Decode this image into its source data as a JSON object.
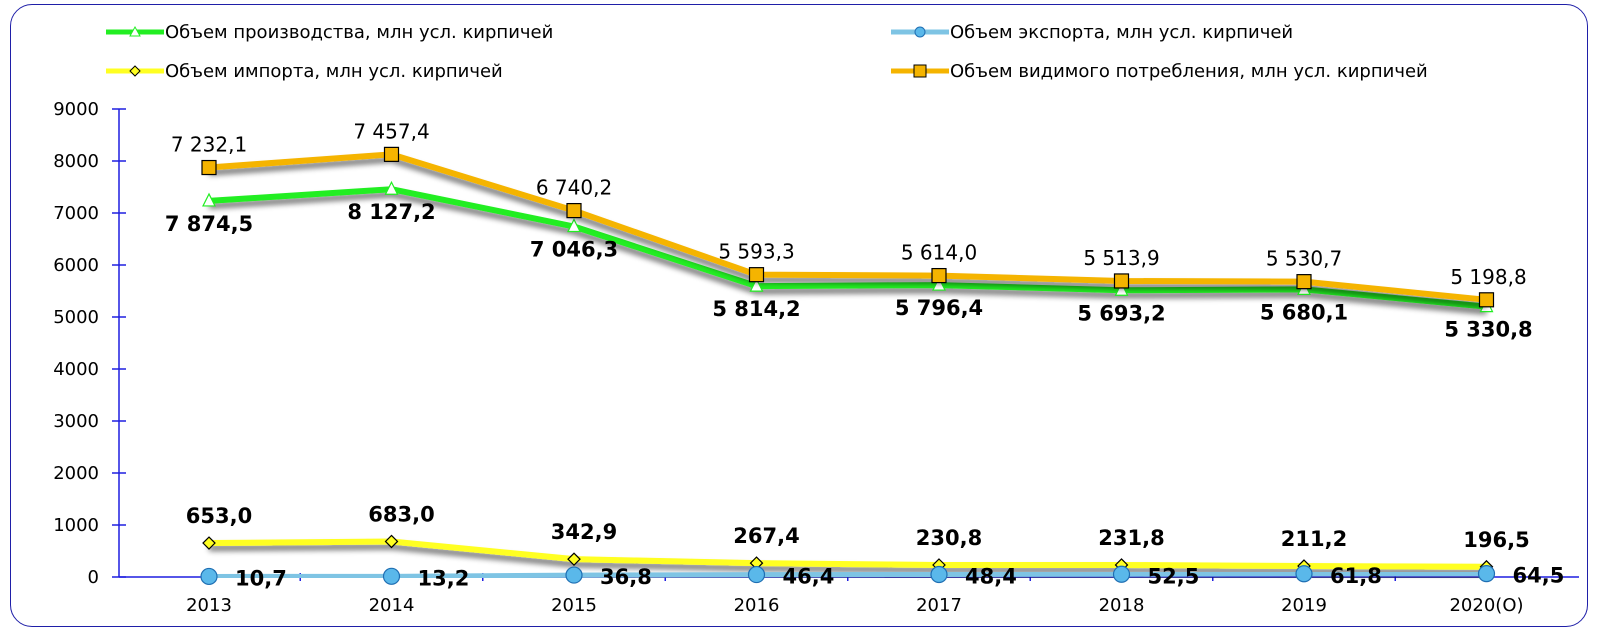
{
  "chart_data": {
    "type": "line",
    "title": "",
    "xlabel": "",
    "ylabel": "",
    "categories": [
      "2013",
      "2014",
      "2015",
      "2016",
      "2017",
      "2018",
      "2019",
      "2020(О)"
    ],
    "ylim": [
      0,
      9000
    ],
    "yticks": [
      0,
      1000,
      2000,
      3000,
      4000,
      5000,
      6000,
      7000,
      8000,
      9000
    ],
    "grid": false,
    "legend_position": "top",
    "series": [
      {
        "key": "production",
        "name": "Объем производства, млн усл. кирпичей",
        "color": "#22ee22",
        "marker": "triangle",
        "values": [
          7232.1,
          7457.4,
          6740.2,
          5593.3,
          5614.0,
          5513.9,
          5530.7,
          5198.8
        ],
        "labels": [
          "7 232,1",
          "7 457,4",
          "6 740,2",
          "5 593,3",
          "5 614,0",
          "5 513,9",
          "5 530,7",
          "5 198,8"
        ]
      },
      {
        "key": "export",
        "name": "Объем экспорта, млн усл. кирпичей",
        "color": "#7ec4e4",
        "marker": "circle",
        "values": [
          10.7,
          13.2,
          36.8,
          46.4,
          48.4,
          52.5,
          61.8,
          64.5
        ],
        "labels": [
          "10,7",
          "13,2",
          "36,8",
          "46,4",
          "48,4",
          "52,5",
          "61,8",
          "64,5"
        ]
      },
      {
        "key": "import",
        "name": "Объем импорта, млн усл. кирпичей",
        "color": "#ffff22",
        "marker": "diamond",
        "values": [
          653.0,
          683.0,
          342.9,
          267.4,
          230.8,
          231.8,
          211.2,
          196.5
        ],
        "labels": [
          "653,0",
          "683,0",
          "342,9",
          "267,4",
          "230,8",
          "231,8",
          "211,2",
          "196,5"
        ]
      },
      {
        "key": "consumption",
        "name": "Объем видимого потребления, млн усл. кирпичей",
        "color": "#f5b400",
        "marker": "square",
        "values": [
          7874.5,
          8127.2,
          7046.3,
          5814.2,
          5796.4,
          5693.2,
          5680.1,
          5330.8
        ],
        "labels": [
          "7 874,5",
          "8 127,2",
          "7 046,3",
          "5 814,2",
          "5 796,4",
          "5 693,2",
          "5 680,1",
          "5 330,8"
        ]
      }
    ]
  }
}
